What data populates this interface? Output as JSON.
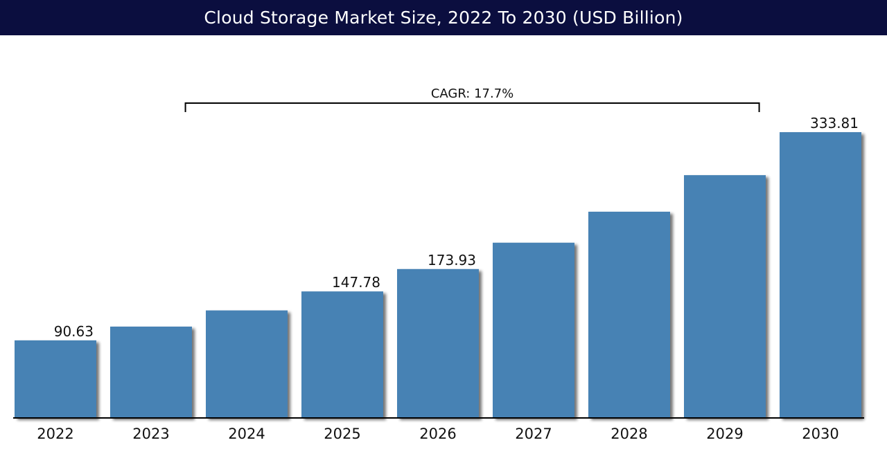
{
  "title": "Cloud Storage Market Size, 2022 To 2030 (USD Billion)",
  "colors": {
    "title_background": "#0b0e3f",
    "bar": "#4682b4",
    "axis": "#000000"
  },
  "chart_data": {
    "type": "bar",
    "title": "Cloud Storage Market Size, 2022 To 2030 (USD Billion)",
    "xlabel": "",
    "ylabel": "",
    "categories": [
      "2022",
      "2023",
      "2024",
      "2025",
      "2026",
      "2027",
      "2028",
      "2029",
      "2030"
    ],
    "values": [
      90.63,
      106.7,
      125.6,
      147.78,
      173.93,
      204.7,
      240.9,
      283.6,
      333.81
    ],
    "data_labels": [
      "90.63",
      "",
      "",
      "147.78",
      "173.93",
      "",
      "",
      "",
      "333.81"
    ],
    "ylim": [
      0,
      400
    ],
    "grid": false,
    "legend": "none",
    "annotation": {
      "label": "CAGR: 17.7%",
      "from_category": "2023",
      "to_category": "2029"
    }
  }
}
